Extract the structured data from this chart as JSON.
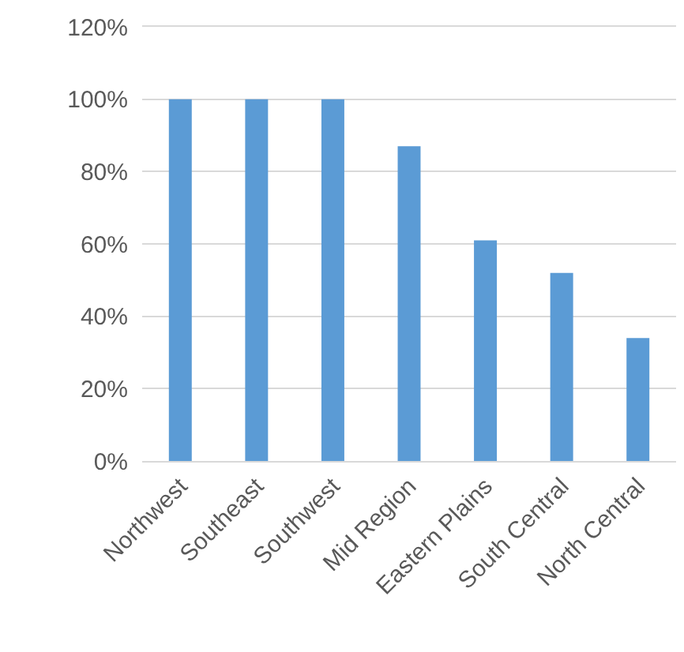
{
  "chart_data": {
    "type": "bar",
    "categories": [
      "Northwest",
      "Southeast",
      "Southwest",
      "Mid Region",
      "Eastern Plains",
      "South Central",
      "North Central"
    ],
    "values": [
      100,
      100,
      100,
      87,
      61,
      52,
      34
    ],
    "color": "#5b9bd5",
    "ylim": [
      0,
      120
    ],
    "yticks": [
      {
        "value": 0,
        "label": "0%"
      },
      {
        "value": 20,
        "label": "20%"
      },
      {
        "value": 40,
        "label": "40%"
      },
      {
        "value": 60,
        "label": "60%"
      },
      {
        "value": 80,
        "label": "80%"
      },
      {
        "value": 100,
        "label": "100%"
      },
      {
        "value": 120,
        "label": "120%"
      }
    ],
    "grid": "y"
  }
}
